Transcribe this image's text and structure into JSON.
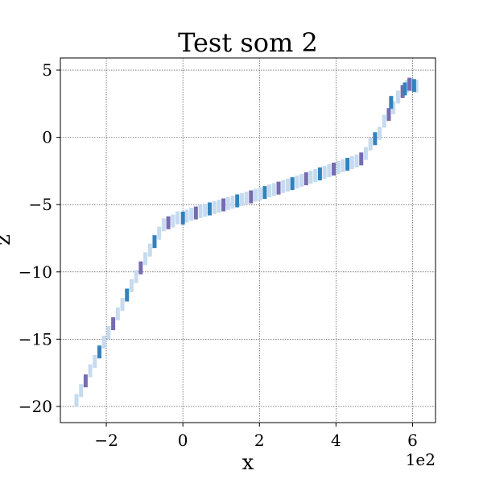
{
  "chart_data": {
    "type": "scatter",
    "title": "Test som 2",
    "xlabel": "x",
    "ylabel": "z",
    "x_offset_text": "1e2",
    "xlim": [
      -3.2,
      6.6
    ],
    "ylim": [
      -21.2,
      5.9
    ],
    "x_ticks": [
      -2,
      0,
      2,
      4,
      6
    ],
    "x_tick_labels": [
      "−2",
      "0",
      "2",
      "4",
      "6"
    ],
    "y_ticks": [
      -20,
      -15,
      -10,
      -5,
      0,
      5
    ],
    "y_tick_labels": [
      "−20",
      "−15",
      "−10",
      "−5",
      "0",
      "5"
    ],
    "grid": true,
    "legend": "none",
    "series": [
      {
        "color": "#c6dbef",
        "points": [
          [
            -2.78,
            -19.55
          ],
          [
            -2.66,
            -18.82
          ],
          [
            -2.42,
            -17.35
          ],
          [
            -2.3,
            -16.65
          ],
          [
            -2.06,
            -15.22
          ],
          [
            -1.94,
            -14.5
          ],
          [
            -1.7,
            -13.12
          ],
          [
            -1.58,
            -12.42
          ],
          [
            -1.34,
            -11.02
          ],
          [
            -1.22,
            -10.35
          ],
          [
            -0.98,
            -9.02
          ],
          [
            -0.86,
            -8.38
          ],
          [
            -0.62,
            -7.12
          ],
          [
            -0.5,
            -6.5
          ],
          [
            -0.26,
            -6.22
          ],
          [
            -0.14,
            -5.98
          ],
          [
            0.1,
            -5.85
          ],
          [
            0.22,
            -5.72
          ],
          [
            0.46,
            -5.52
          ],
          [
            0.58,
            -5.42
          ],
          [
            0.82,
            -5.22
          ],
          [
            0.94,
            -5.12
          ],
          [
            1.18,
            -4.92
          ],
          [
            1.3,
            -4.82
          ],
          [
            1.54,
            -4.62
          ],
          [
            1.66,
            -4.52
          ],
          [
            1.9,
            -4.3
          ],
          [
            2.02,
            -4.2
          ],
          [
            2.26,
            -3.98
          ],
          [
            2.38,
            -3.88
          ],
          [
            2.62,
            -3.66
          ],
          [
            2.74,
            -3.55
          ],
          [
            2.98,
            -3.32
          ],
          [
            3.1,
            -3.2
          ],
          [
            3.34,
            -2.96
          ],
          [
            3.46,
            -2.84
          ],
          [
            3.7,
            -2.6
          ],
          [
            3.82,
            -2.48
          ],
          [
            4.06,
            -2.24
          ],
          [
            4.18,
            -2.12
          ],
          [
            4.42,
            -1.88
          ],
          [
            4.54,
            -1.76
          ],
          [
            4.78,
            -1.2
          ],
          [
            4.9,
            -0.5
          ],
          [
            5.14,
            0.3
          ],
          [
            5.26,
            1.2
          ],
          [
            5.5,
            2.2
          ],
          [
            5.62,
            3.0
          ],
          [
            5.86,
            3.8
          ],
          [
            5.98,
            3.9
          ],
          [
            6.1,
            3.8
          ]
        ]
      },
      {
        "color": "#756bb1",
        "points": [
          [
            -2.54,
            -18.1
          ],
          [
            -1.82,
            -13.85
          ],
          [
            -1.1,
            -9.7
          ],
          [
            -0.38,
            -6.35
          ],
          [
            0.34,
            -5.62
          ],
          [
            1.06,
            -5.02
          ],
          [
            1.78,
            -4.42
          ],
          [
            2.5,
            -3.77
          ],
          [
            3.22,
            -3.08
          ],
          [
            3.94,
            -2.36
          ],
          [
            4.66,
            -1.6
          ],
          [
            5.38,
            1.7
          ],
          [
            5.74,
            3.4
          ],
          [
            5.92,
            3.95
          ]
        ]
      },
      {
        "color": "#3182bd",
        "points": [
          [
            -2.18,
            -15.95
          ],
          [
            -1.46,
            -11.72
          ],
          [
            -0.74,
            -7.75
          ],
          [
            0.0,
            -6.0
          ],
          [
            0.7,
            -5.32
          ],
          [
            1.42,
            -4.72
          ],
          [
            2.14,
            -4.1
          ],
          [
            2.86,
            -3.44
          ],
          [
            3.58,
            -2.72
          ],
          [
            4.3,
            -2.0
          ],
          [
            5.02,
            -0.1
          ],
          [
            5.44,
            2.6
          ],
          [
            5.8,
            3.6
          ],
          [
            6.04,
            3.85
          ]
        ]
      }
    ]
  }
}
